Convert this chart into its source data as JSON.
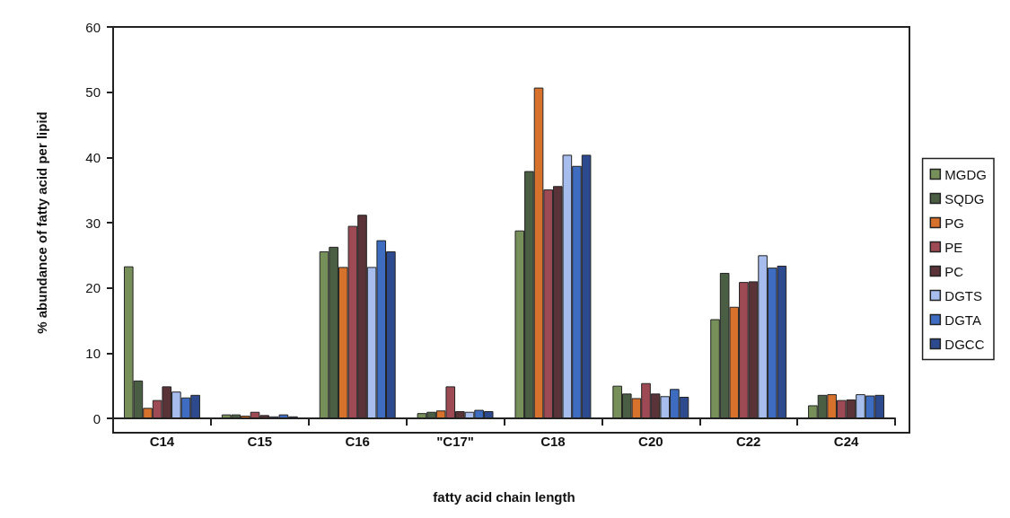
{
  "chart_data": {
    "type": "bar",
    "xlabel": "fatty acid chain length",
    "ylabel": "% abundance of fatty acid per lipid",
    "categories": [
      "C14",
      "C15",
      "C16",
      "\"C17\"",
      "C18",
      "C20",
      "C22",
      "C24"
    ],
    "series": [
      {
        "name": "MGDG",
        "color": "#77905a",
        "values": [
          23.3,
          0.6,
          25.6,
          0.8,
          28.8,
          5.0,
          15.2,
          2.0
        ]
      },
      {
        "name": "SQDG",
        "color": "#4a5e44",
        "values": [
          5.8,
          0.6,
          26.3,
          1.0,
          37.9,
          3.8,
          22.3,
          3.6
        ]
      },
      {
        "name": "PG",
        "color": "#d7722c",
        "values": [
          1.6,
          0.4,
          23.2,
          1.2,
          50.7,
          3.1,
          17.1,
          3.7
        ]
      },
      {
        "name": "PE",
        "color": "#9e4a55",
        "values": [
          2.8,
          1.0,
          29.5,
          4.9,
          35.1,
          5.4,
          20.9,
          2.8
        ]
      },
      {
        "name": "PC",
        "color": "#5a3338",
        "values": [
          4.9,
          0.5,
          31.2,
          1.1,
          35.6,
          3.8,
          21.0,
          2.9
        ]
      },
      {
        "name": "DGTS",
        "color": "#a6bdee",
        "values": [
          4.1,
          0.3,
          23.2,
          1.0,
          40.4,
          3.4,
          25.0,
          3.7
        ]
      },
      {
        "name": "DGTA",
        "color": "#3d6cc0",
        "values": [
          3.2,
          0.6,
          27.3,
          1.3,
          38.7,
          4.5,
          23.1,
          3.5
        ]
      },
      {
        "name": "DGCC",
        "color": "#2e4a8e",
        "values": [
          3.6,
          0.3,
          25.6,
          1.1,
          40.4,
          3.3,
          23.4,
          3.6
        ]
      }
    ],
    "ylim": [
      0,
      60
    ],
    "yticks": [
      0,
      10,
      20,
      30,
      40,
      50,
      60
    ],
    "grid": false,
    "legend": "right"
  }
}
